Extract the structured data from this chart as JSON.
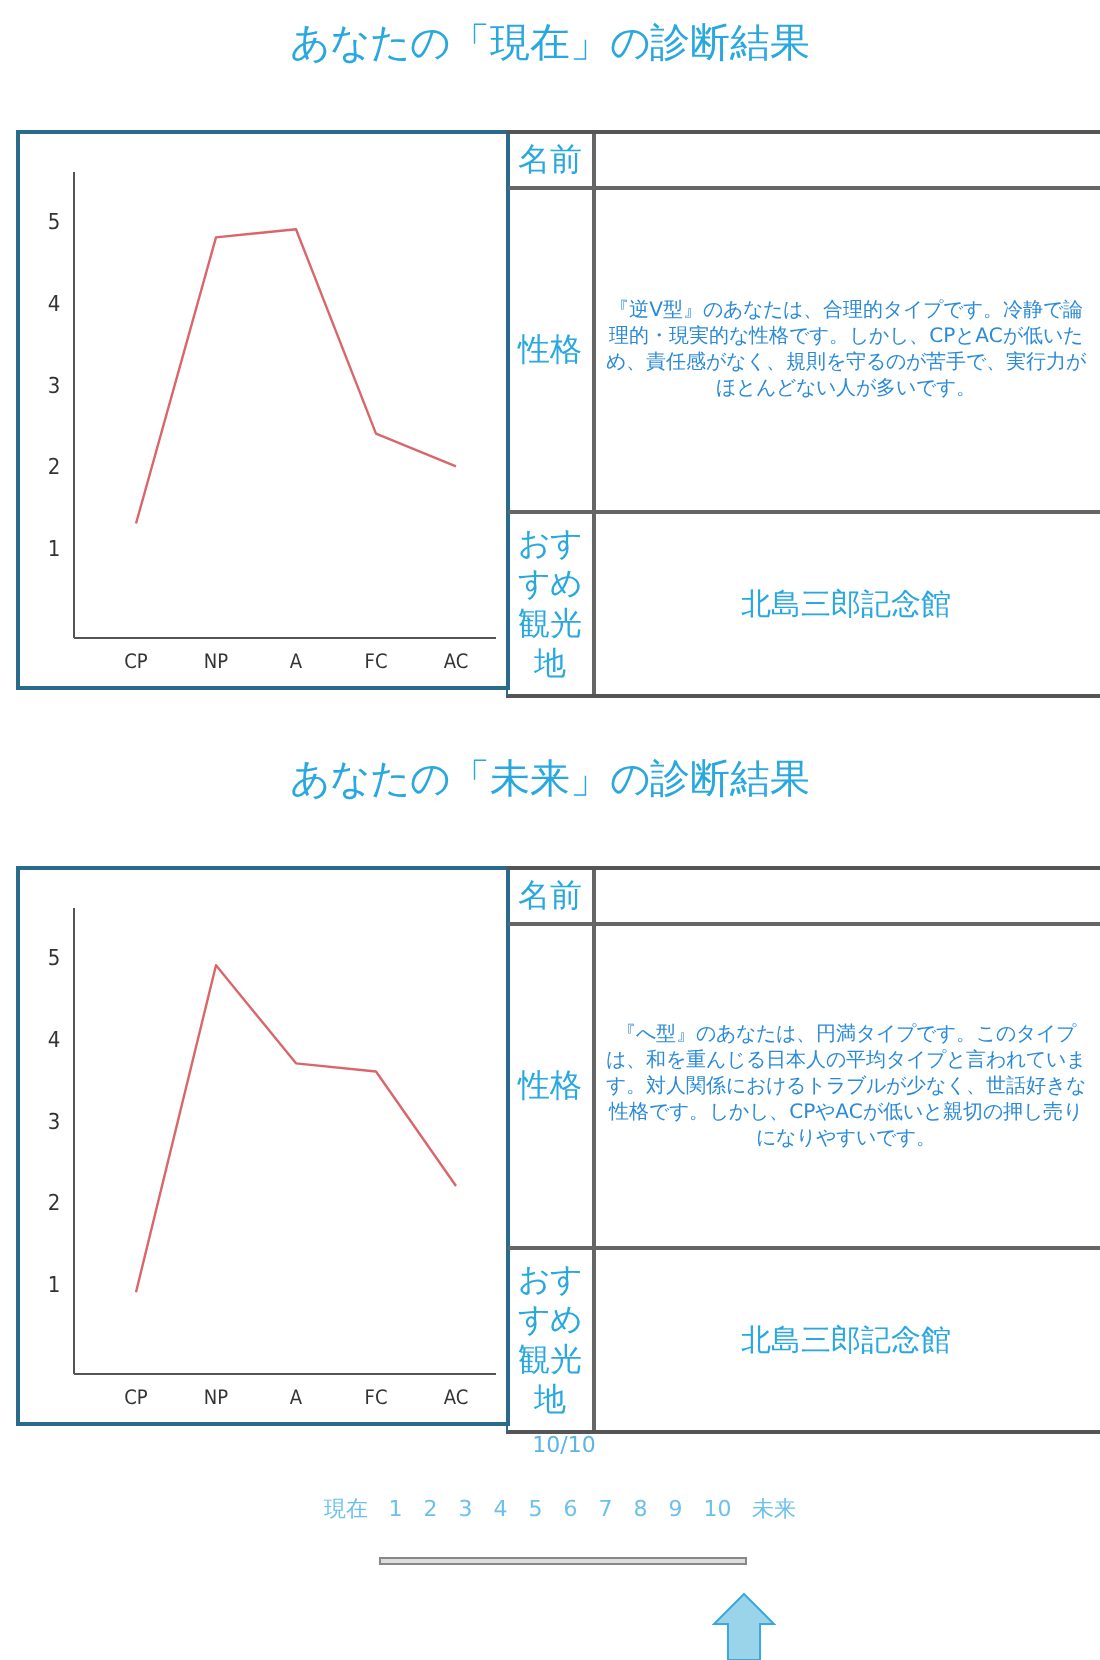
{
  "chart_data": [
    {
      "type": "line",
      "title": "あなたの「現在」の診断結果",
      "categories": [
        "CP",
        "NP",
        "A",
        "FC",
        "AC"
      ],
      "values": [
        1.3,
        4.8,
        4.9,
        2.4,
        2.0
      ],
      "color": "#d9666a",
      "ylim": [
        -0.1,
        5.6
      ],
      "yticks": [
        1,
        2,
        3,
        4,
        5
      ]
    },
    {
      "type": "other",
      "annotations": [
        "名前",
        "性格",
        "『逆V型』のあなたは、合理的タイプです。冷静で論理的・現実的な性格です。しかし、CPとACが低いため、責任感がなく、規則を守るのが苦手で、実行力がほとんどない人が多いです。",
        "おすすめ観光地",
        "北島三郎記念館"
      ]
    },
    {
      "type": "line",
      "title": "あなたの「未来」の診断結果",
      "categories": [
        "CP",
        "NP",
        "A",
        "FC",
        "AC"
      ],
      "values": [
        0.9,
        4.9,
        3.7,
        3.6,
        2.2
      ],
      "color": "#d9666a",
      "ylim": [
        -0.1,
        5.6
      ],
      "yticks": [
        1,
        2,
        3,
        4,
        5
      ]
    },
    {
      "type": "other",
      "annotations": [
        "名前",
        "性格",
        "『へ型』のあなたは、円満タイプです。このタイプは、和を重んじる日本人の平均タイプと言われています。対人関係におけるトラブルが少なく、世話好きな性格です。しかし、CPやACが低いと親切の押し売りになりやすいです。",
        "おすすめ観光地",
        "北島三郎記念館"
      ]
    },
    {
      "type": "other",
      "annotations": [
        "10/10",
        "現在 1 2 3 4 5 6 7 8 9 10 未来"
      ]
    }
  ]
}
